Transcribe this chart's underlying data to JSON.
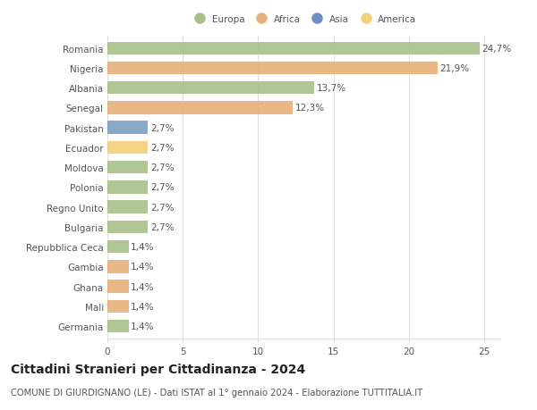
{
  "categories": [
    "Romania",
    "Nigeria",
    "Albania",
    "Senegal",
    "Pakistan",
    "Ecuador",
    "Moldova",
    "Polonia",
    "Regno Unito",
    "Bulgaria",
    "Repubblica Ceca",
    "Gambia",
    "Ghana",
    "Mali",
    "Germania"
  ],
  "values": [
    24.7,
    21.9,
    13.7,
    12.3,
    2.7,
    2.7,
    2.7,
    2.7,
    2.7,
    2.7,
    1.4,
    1.4,
    1.4,
    1.4,
    1.4
  ],
  "labels": [
    "24,7%",
    "21,9%",
    "13,7%",
    "12,3%",
    "2,7%",
    "2,7%",
    "2,7%",
    "2,7%",
    "2,7%",
    "2,7%",
    "1,4%",
    "1,4%",
    "1,4%",
    "1,4%",
    "1,4%"
  ],
  "colors": [
    "#a8c08a",
    "#e8b07a",
    "#a8c08a",
    "#e8b07a",
    "#7b9fc4",
    "#f5d07a",
    "#a8c08a",
    "#a8c08a",
    "#a8c08a",
    "#a8c08a",
    "#a8c08a",
    "#e8b07a",
    "#e8b07a",
    "#e8b07a",
    "#a8c08a"
  ],
  "legend_labels": [
    "Europa",
    "Africa",
    "Asia",
    "America"
  ],
  "legend_colors": [
    "#a8c08a",
    "#e8b07a",
    "#6b8fc4",
    "#f5d07a"
  ],
  "title": "Cittadini Stranieri per Cittadinanza - 2024",
  "subtitle": "COMUNE DI GIURDIGNANO (LE) - Dati ISTAT al 1° gennaio 2024 - Elaborazione TUTTITALIA.IT",
  "xlim": [
    0,
    26
  ],
  "xticks": [
    0,
    5,
    10,
    15,
    20,
    25
  ],
  "background_color": "#ffffff",
  "grid_color": "#e0e0e0",
  "bar_height": 0.65,
  "label_fontsize": 7.5,
  "tick_fontsize": 7.5,
  "title_fontsize": 10,
  "subtitle_fontsize": 7.2
}
